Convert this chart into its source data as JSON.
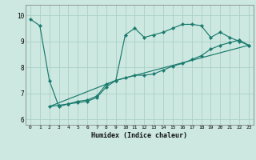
{
  "xlabel": "Humidex (Indice chaleur)",
  "bg_color": "#cce8e0",
  "grid_color": "#aacfc8",
  "line_color": "#1a7a6e",
  "xlim": [
    -0.5,
    23.5
  ],
  "ylim": [
    5.8,
    10.4
  ],
  "yticks": [
    6,
    7,
    8,
    9,
    10
  ],
  "xticks": [
    0,
    1,
    2,
    3,
    4,
    5,
    6,
    7,
    8,
    9,
    10,
    11,
    12,
    13,
    14,
    15,
    16,
    17,
    18,
    19,
    20,
    21,
    22,
    23
  ],
  "series1_x": [
    0,
    1,
    2,
    3,
    4,
    5,
    6,
    7,
    8,
    9,
    10,
    11,
    12,
    13,
    14,
    15,
    16,
    17,
    18,
    19,
    20,
    21,
    22,
    23
  ],
  "series1_y": [
    9.85,
    9.6,
    7.5,
    6.5,
    6.6,
    6.7,
    6.75,
    6.9,
    7.35,
    7.5,
    9.25,
    9.5,
    9.15,
    9.25,
    9.35,
    9.5,
    9.65,
    9.65,
    9.6,
    9.15,
    9.35,
    9.15,
    9.0,
    8.85
  ],
  "series2_x": [
    2,
    3,
    4,
    5,
    6,
    7,
    8,
    9,
    10,
    11,
    12,
    13,
    14,
    15,
    16,
    17,
    18,
    19,
    20,
    21,
    22,
    23
  ],
  "series2_y": [
    6.5,
    6.55,
    6.6,
    6.65,
    6.7,
    6.85,
    7.25,
    7.5,
    7.6,
    7.7,
    7.7,
    7.75,
    7.9,
    8.05,
    8.15,
    8.3,
    8.45,
    8.7,
    8.85,
    8.95,
    9.05,
    8.85
  ],
  "series3_x": [
    2,
    9,
    23
  ],
  "series3_y": [
    6.5,
    7.5,
    8.85
  ]
}
